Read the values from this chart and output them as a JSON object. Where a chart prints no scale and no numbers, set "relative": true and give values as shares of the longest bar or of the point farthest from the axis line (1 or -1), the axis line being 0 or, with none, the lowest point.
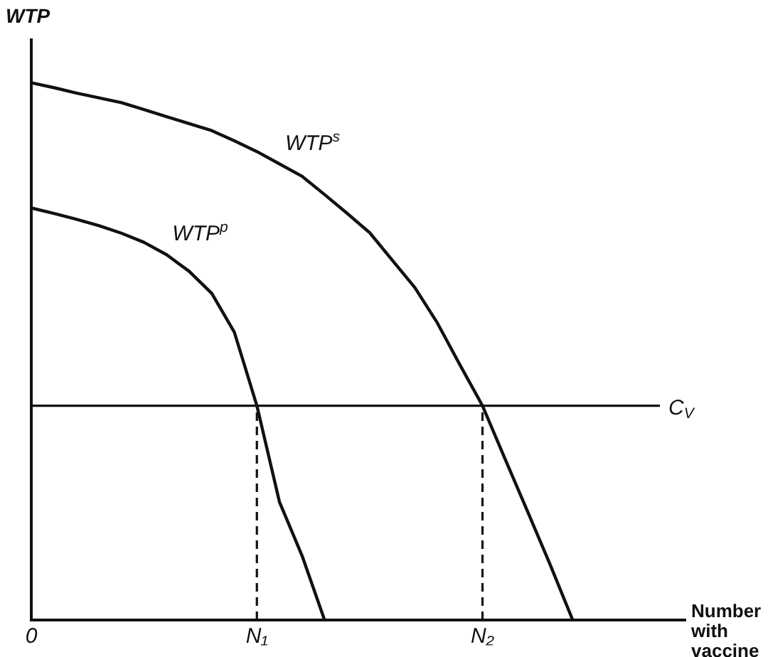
{
  "chart_data": {
    "type": "line",
    "relative": true,
    "ylabel": "WTP",
    "xlabel": "Number with vaccine",
    "legend": false,
    "grid": false,
    "marker": "none",
    "line_style": "solid",
    "categories": [
      "0",
      null,
      null,
      null,
      null,
      null,
      null,
      null,
      null,
      null,
      "N₁",
      null,
      null,
      null,
      null,
      null,
      null,
      null,
      null,
      null,
      "N₂",
      null,
      null,
      null,
      null,
      null,
      null,
      null,
      null,
      null
    ],
    "series": [
      {
        "name": "WTP$^{s}$",
        "color": "#111111",
        "values": [
          1,
          0.991,
          0.981,
          0.972,
          0.963,
          0.95,
          0.937,
          0.924,
          0.911,
          0.892,
          0.872,
          0.849,
          0.826,
          0.792,
          0.757,
          0.721,
          0.67,
          0.619,
          0.553,
          0.475,
          0.399,
          0.3,
          0.202,
          0.103,
          0,
          null,
          null,
          null,
          null,
          null
        ]
      },
      {
        "name": "WTP$^{p}$",
        "color": "#111111",
        "values": [
          0.767,
          0.757,
          0.746,
          0.734,
          0.72,
          0.703,
          0.68,
          0.649,
          0.608,
          0.536,
          0.399,
          0.22,
          0.12,
          0,
          null,
          null,
          null,
          null,
          null,
          null,
          null,
          null,
          null,
          null,
          null,
          null,
          null,
          null,
          null,
          null
        ]
      }
    ],
    "ref_lines": [
      {
        "axis": "y",
        "value": 0.399,
        "label": "C$_{V}$",
        "color": "#111111",
        "line_style": "solid"
      },
      {
        "axis": "x",
        "value": "N₁",
        "color": "#111111",
        "line_style": "dashed"
      },
      {
        "axis": "x",
        "value": "N₂",
        "color": "#111111",
        "line_style": "dashed"
      }
    ]
  }
}
